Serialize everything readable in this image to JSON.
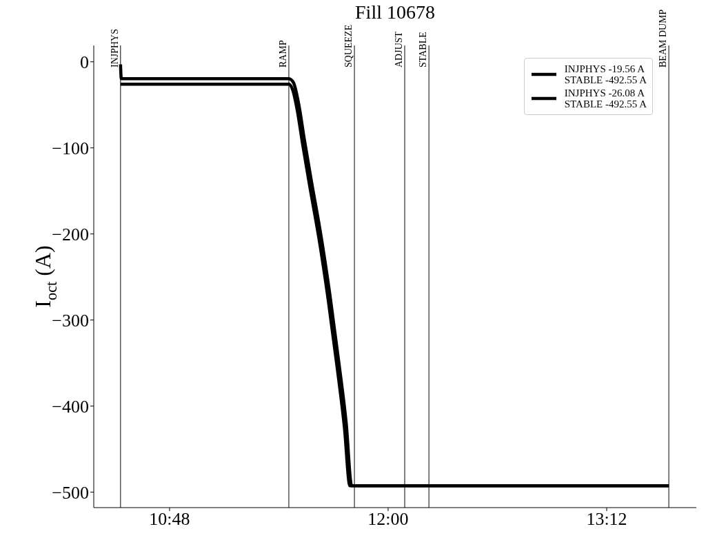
{
  "chart_data": {
    "type": "line",
    "title": "Fill 10678",
    "ylabel": "I$_{oct}$ (A)",
    "xlim": [
      10.384,
      13.692
    ],
    "ylim": [
      -518,
      19
    ],
    "xticks": [
      {
        "value": 10.8,
        "label": "10:48"
      },
      {
        "value": 12,
        "label": "12:00"
      },
      {
        "value": 13.2,
        "label": "13:12"
      }
    ],
    "yticks": [
      {
        "value": 0,
        "label": "0"
      },
      {
        "value": -100,
        "label": "−100"
      },
      {
        "value": -200,
        "label": "−200"
      },
      {
        "value": -300,
        "label": "−300"
      },
      {
        "value": -400,
        "label": "−400"
      },
      {
        "value": -500,
        "label": "−500"
      }
    ],
    "grid": false,
    "legend": "top right",
    "line_style": "solid",
    "marker": "none",
    "series": [
      {
        "name": "INJPHYS -19.56 A\nSTABLE -492.55 A",
        "color": "#000000",
        "x": [
          10.531,
          10.535,
          11.455,
          11.48,
          11.51,
          11.54,
          11.58,
          11.63,
          11.68,
          11.73,
          11.77,
          11.8,
          13.541
        ],
        "values": [
          -3,
          -19.56,
          -19.56,
          -24,
          -50,
          -90,
          -140,
          -200,
          -270,
          -350,
          -420,
          -492.55,
          -492.55
        ]
      },
      {
        "name": "INJPHYS -26.08 A\nSTABLE -492.55 A",
        "color": "#000000",
        "x": [
          10.531,
          11.455,
          11.475,
          11.5,
          11.53,
          11.57,
          11.62,
          11.67,
          11.72,
          11.76,
          11.79,
          13.541
        ],
        "values": [
          -26.08,
          -26.08,
          -32,
          -55,
          -95,
          -145,
          -205,
          -275,
          -355,
          -425,
          -492.55,
          -492.55
        ]
      }
    ],
    "ref_lines": [
      {
        "axis": "x",
        "value": 10.531,
        "label": "INJPHYS",
        "color": "#000000"
      },
      {
        "axis": "x",
        "value": 11.455,
        "label": "RAMP",
        "color": "#000000"
      },
      {
        "axis": "x",
        "value": 11.815,
        "label": "SQUEEZE",
        "color": "#000000"
      },
      {
        "axis": "x",
        "value": 12.091,
        "label": "ADJUST",
        "color": "#000000"
      },
      {
        "axis": "x",
        "value": 12.224,
        "label": "STABLE",
        "color": "#000000"
      },
      {
        "axis": "x",
        "value": 13.541,
        "label": "BEAM DUMP",
        "color": "#000000"
      }
    ]
  }
}
